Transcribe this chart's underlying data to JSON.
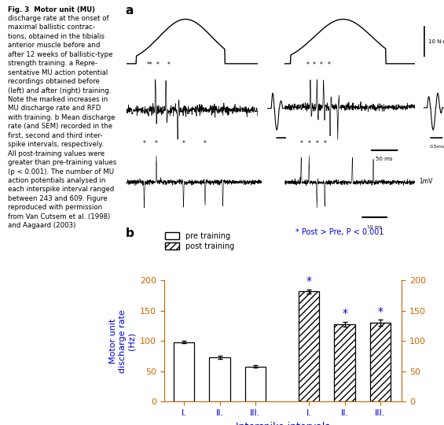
{
  "caption_lines": [
    "Fig. 3  Motor unit (MU)",
    "discharge rate at the onset of",
    "maximal ballistic contrac-",
    "tions, obtained in the tibialis",
    "anterior muscle before and",
    "after 12 weeks of ballistic-type",
    "strength training. a Repre-",
    "sentative MU action potential",
    "recordings obtained before",
    "(left) and after (right) training.",
    "Note the marked increases in",
    "MU discharge rate and RFD",
    "with training. b Mean discharge",
    "rate (and SEM) recorded in the",
    "first, second and third inter-",
    "spike intervals, respectively.",
    "All post-training values were",
    "greater than pre-training values",
    "(p < 0.001). The number of MU",
    "action potentials analysed in",
    "each interspike interval ranged",
    "between 243 and 609. Figure",
    "reproduced with permission",
    "from Van Cutsem et al. (1998)",
    "and Aagaard (2003)"
  ],
  "pre_values": [
    98,
    73,
    58
  ],
  "pre_errors": [
    2,
    2.5,
    2
  ],
  "post_values": [
    182,
    128,
    130
  ],
  "post_errors": [
    3,
    4,
    5
  ],
  "ylim": [
    0,
    200
  ],
  "yticks": [
    0,
    50,
    100,
    150,
    200
  ],
  "xlabel": "Interspike intervals",
  "ylabel": "Motor unit\ndischarge rate\n(Hz)",
  "legend_pre": "pre training",
  "legend_post": "post training",
  "sig_note": "* Post > Pre, P < 0.001",
  "x_labels": [
    "I.",
    "II.",
    "III.",
    "I.",
    "II.",
    "III."
  ],
  "bar_color_pre": "#ffffff",
  "bar_color_post": "#ffffff",
  "bar_edge_color": "#000000",
  "text_color_blue": "#0000cc",
  "axis_color": "#cc6600",
  "star_color": "#0000cc",
  "hatch_post": "////",
  "ref_color": "#0000cc"
}
